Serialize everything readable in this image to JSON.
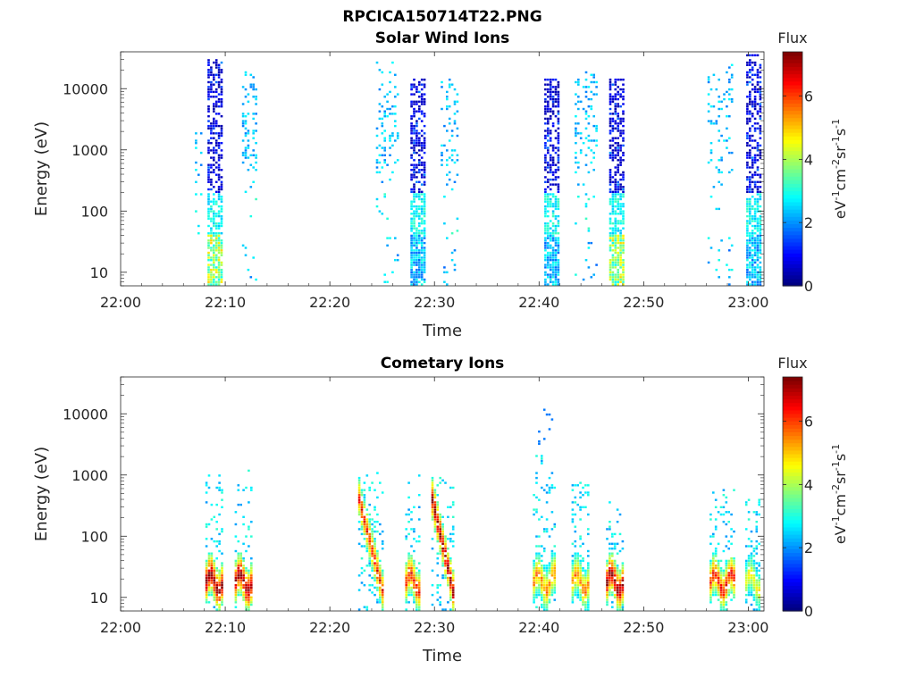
{
  "figure": {
    "title": "RPCICA150714T22.PNG"
  },
  "colorbar": {
    "title": "Flux",
    "unit_label": "eV-1cm-2sr-1s-1",
    "ticks": [
      0,
      2,
      4,
      6
    ],
    "range": [
      0,
      7.4
    ],
    "colormap": "jet"
  },
  "chart_data": [
    {
      "type": "heatmap",
      "title": "Solar Wind Ions",
      "xlabel": "Time",
      "ylabel": "Energy (eV)",
      "x_ticks": [
        "22:00",
        "22:10",
        "22:20",
        "22:30",
        "22:40",
        "22:50",
        "23:00"
      ],
      "x_range_minutes": [
        0,
        61.5
      ],
      "y_ticks": [
        10,
        100,
        1000,
        10000
      ],
      "y_tick_labels": [
        "10",
        "100",
        "1000",
        "10000"
      ],
      "ylim": [
        6,
        40000
      ],
      "y_scale": "log",
      "bursts": [
        {
          "center": 9.1,
          "width": 1.6,
          "e_max": 30000,
          "note": "dense burst, low-energy flux ~4-5"
        },
        {
          "center": 12.3,
          "width": 1.4,
          "e_max": 20000,
          "note": "sparse, flux ~2-3"
        },
        {
          "center": 7.5,
          "width": 0.8,
          "e_max": 2000,
          "note": "sparse, flux ~2-3"
        },
        {
          "center": 25.5,
          "width": 2.2,
          "e_max": 30000,
          "note": "sparse, flux ~2-3"
        },
        {
          "center": 28.5,
          "width": 1.6,
          "e_max": 15000,
          "note": "dense burst, flux ~1-3"
        },
        {
          "center": 31.5,
          "width": 1.8,
          "e_max": 15000,
          "note": "sparse, flux ~2-3"
        },
        {
          "center": 41.3,
          "width": 1.6,
          "e_max": 15000,
          "note": "dense burst, flux ~1-3"
        },
        {
          "center": 44.5,
          "width": 2.2,
          "e_max": 20000,
          "note": "sparse, flux ~2-3"
        },
        {
          "center": 47.5,
          "width": 1.6,
          "e_max": 15000,
          "note": "dense burst, low-energy flux ~4-5"
        },
        {
          "center": 57.3,
          "width": 2.4,
          "e_max": 25000,
          "note": "sparse, flux ~2-3"
        },
        {
          "center": 60.5,
          "width": 1.4,
          "e_max": 35000,
          "note": "dense burst, flux ~1-3"
        }
      ]
    },
    {
      "type": "heatmap",
      "title": "Cometary Ions",
      "xlabel": "Time",
      "ylabel": "Energy (eV)",
      "x_ticks": [
        "22:00",
        "22:10",
        "22:20",
        "22:30",
        "22:40",
        "22:50",
        "23:00"
      ],
      "x_range_minutes": [
        0,
        61.5
      ],
      "y_ticks": [
        10,
        100,
        1000,
        10000
      ],
      "y_tick_labels": [
        "10",
        "100",
        "1000",
        "10000"
      ],
      "ylim": [
        6,
        40000
      ],
      "y_scale": "log",
      "bursts": [
        {
          "center": 9.0,
          "width": 1.8,
          "e_max": 1300,
          "note": "peak flux ~7 near 15-20 eV"
        },
        {
          "center": 11.8,
          "width": 1.8,
          "e_max": 1200,
          "note": "peak flux ~7 near 15-20 eV"
        },
        {
          "center": 24.0,
          "width": 2.6,
          "e_max": 1200,
          "note": "descending band 400 to 15 eV, peak ~6"
        },
        {
          "center": 28.0,
          "width": 1.6,
          "e_max": 1500,
          "note": "flux ~4-6"
        },
        {
          "center": 30.8,
          "width": 2.2,
          "e_max": 1200,
          "note": "descending band, peak ~7"
        },
        {
          "center": 40.5,
          "width": 2.2,
          "e_max": 15000,
          "note": "flux ~4-5"
        },
        {
          "center": 44.0,
          "width": 1.8,
          "e_max": 1200,
          "note": "flux ~4-5"
        },
        {
          "center": 47.3,
          "width": 1.8,
          "e_max": 400,
          "note": "peak flux ~6-7"
        },
        {
          "center": 57.5,
          "width": 2.4,
          "e_max": 600,
          "note": "flux ~5-6"
        },
        {
          "center": 60.5,
          "width": 1.6,
          "e_max": 400,
          "note": "flux ~3-4"
        }
      ]
    }
  ]
}
